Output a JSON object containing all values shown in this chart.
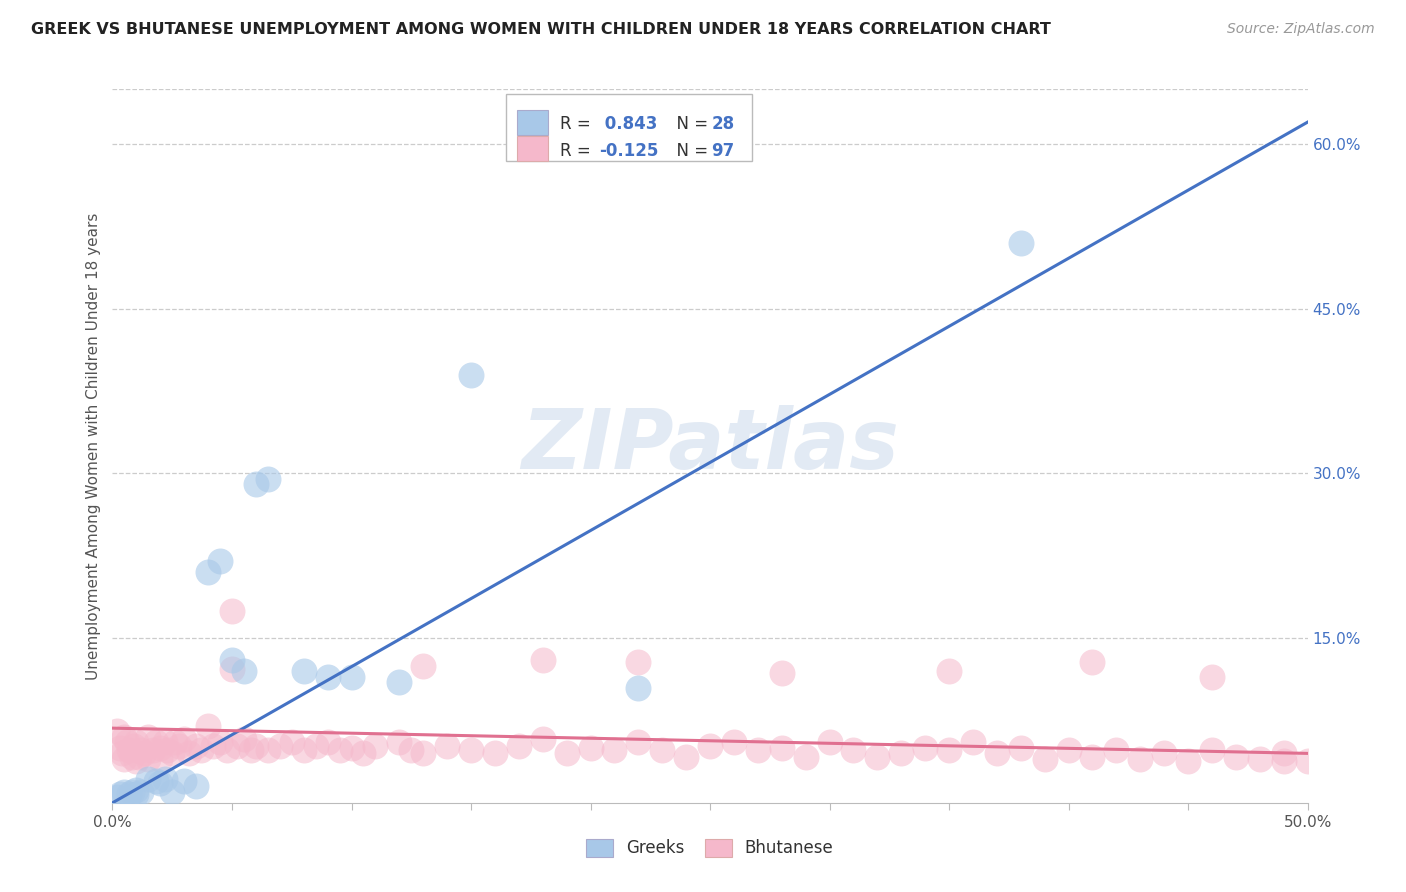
{
  "title": "GREEK VS BHUTANESE UNEMPLOYMENT AMONG WOMEN WITH CHILDREN UNDER 18 YEARS CORRELATION CHART",
  "source": "Source: ZipAtlas.com",
  "ylabel": "Unemployment Among Women with Children Under 18 years",
  "xlim": [
    0.0,
    0.5
  ],
  "ylim": [
    0.0,
    0.65
  ],
  "greek_R": 0.843,
  "greek_N": 28,
  "bhutanese_R": -0.125,
  "bhutanese_N": 97,
  "greek_color": "#a8c8e8",
  "bhutanese_color": "#f5b8cb",
  "greek_line_color": "#4472c4",
  "bhutanese_line_color": "#e07090",
  "watermark_text": "ZIPatlas",
  "background_color": "#ffffff",
  "greek_x": [
    0.002,
    0.003,
    0.005,
    0.007,
    0.008,
    0.01,
    0.01,
    0.012,
    0.015,
    0.018,
    0.02,
    0.022,
    0.025,
    0.03,
    0.035,
    0.04,
    0.045,
    0.05,
    0.055,
    0.06,
    0.065,
    0.08,
    0.09,
    0.1,
    0.12,
    0.15,
    0.22,
    0.38
  ],
  "greek_y": [
    0.005,
    0.008,
    0.01,
    0.008,
    0.01,
    0.012,
    0.008,
    0.01,
    0.022,
    0.02,
    0.018,
    0.022,
    0.01,
    0.02,
    0.015,
    0.21,
    0.22,
    0.13,
    0.12,
    0.29,
    0.295,
    0.12,
    0.115,
    0.115,
    0.11,
    0.39,
    0.105,
    0.51
  ],
  "bhutanese_x": [
    0.002,
    0.003,
    0.004,
    0.005,
    0.005,
    0.006,
    0.007,
    0.008,
    0.009,
    0.01,
    0.01,
    0.011,
    0.012,
    0.013,
    0.015,
    0.015,
    0.017,
    0.018,
    0.02,
    0.02,
    0.022,
    0.023,
    0.025,
    0.026,
    0.028,
    0.03,
    0.032,
    0.035,
    0.037,
    0.04,
    0.042,
    0.045,
    0.048,
    0.05,
    0.052,
    0.055,
    0.058,
    0.06,
    0.065,
    0.07,
    0.075,
    0.08,
    0.085,
    0.09,
    0.095,
    0.1,
    0.105,
    0.11,
    0.12,
    0.125,
    0.13,
    0.14,
    0.15,
    0.16,
    0.17,
    0.18,
    0.19,
    0.2,
    0.21,
    0.22,
    0.23,
    0.24,
    0.25,
    0.26,
    0.27,
    0.28,
    0.29,
    0.3,
    0.31,
    0.32,
    0.33,
    0.34,
    0.35,
    0.36,
    0.37,
    0.38,
    0.39,
    0.4,
    0.41,
    0.42,
    0.43,
    0.44,
    0.45,
    0.46,
    0.47,
    0.48,
    0.49,
    0.5,
    0.18,
    0.22,
    0.05,
    0.13,
    0.28,
    0.35,
    0.41,
    0.46,
    0.49
  ],
  "bhutanese_y": [
    0.065,
    0.05,
    0.045,
    0.06,
    0.04,
    0.055,
    0.048,
    0.042,
    0.052,
    0.055,
    0.038,
    0.042,
    0.048,
    0.045,
    0.06,
    0.04,
    0.048,
    0.055,
    0.05,
    0.04,
    0.055,
    0.048,
    0.045,
    0.055,
    0.052,
    0.058,
    0.045,
    0.052,
    0.048,
    0.07,
    0.052,
    0.055,
    0.048,
    0.175,
    0.052,
    0.058,
    0.048,
    0.052,
    0.048,
    0.052,
    0.055,
    0.048,
    0.052,
    0.055,
    0.048,
    0.05,
    0.045,
    0.052,
    0.055,
    0.048,
    0.045,
    0.052,
    0.048,
    0.045,
    0.052,
    0.058,
    0.045,
    0.05,
    0.048,
    0.055,
    0.048,
    0.042,
    0.052,
    0.055,
    0.048,
    0.05,
    0.042,
    0.055,
    0.048,
    0.042,
    0.045,
    0.05,
    0.048,
    0.055,
    0.045,
    0.05,
    0.04,
    0.048,
    0.042,
    0.048,
    0.04,
    0.045,
    0.038,
    0.048,
    0.042,
    0.04,
    0.045,
    0.038,
    0.13,
    0.128,
    0.122,
    0.125,
    0.118,
    0.12,
    0.128,
    0.115,
    0.038
  ]
}
